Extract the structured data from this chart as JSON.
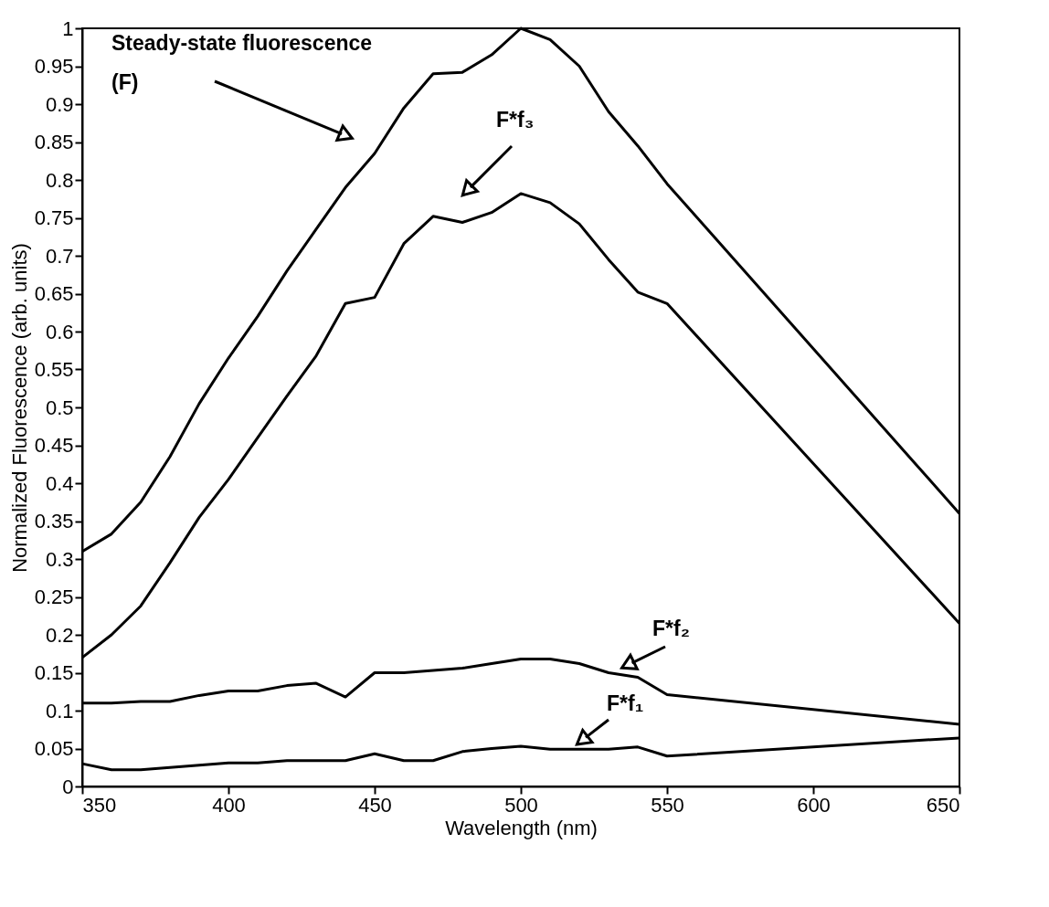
{
  "chart_data": {
    "type": "line",
    "xlabel": "Wavelength (nm)",
    "ylabel": "Normalized Fluorescence (arb. units)",
    "x": [
      350,
      360,
      370,
      380,
      390,
      400,
      410,
      420,
      430,
      440,
      450,
      460,
      470,
      480,
      490,
      500,
      510,
      520,
      530,
      540,
      550,
      650
    ],
    "series": [
      {
        "color": "#000000",
        "values": [
          0.31,
          0.333,
          0.375,
          0.435,
          0.505,
          0.565,
          0.62,
          0.68,
          0.735,
          0.79,
          0.835,
          0.895,
          0.94,
          0.942,
          0.965,
          1.0,
          0.985,
          0.95,
          0.89,
          0.845,
          0.795,
          0.36
        ]
      },
      {
        "color": "#000000",
        "values": [
          0.17,
          0.2,
          0.238,
          0.295,
          0.355,
          0.405,
          0.46,
          0.515,
          0.568,
          0.637,
          0.645,
          0.716,
          0.752,
          0.744,
          0.757,
          0.782,
          0.77,
          0.742,
          0.695,
          0.652,
          0.637,
          0.215
        ]
      },
      {
        "color": "#000000",
        "values": [
          0.11,
          0.11,
          0.112,
          0.112,
          0.12,
          0.126,
          0.126,
          0.133,
          0.136,
          0.118,
          0.15,
          0.15,
          0.153,
          0.156,
          0.162,
          0.168,
          0.168,
          0.162,
          0.15,
          0.144,
          0.121,
          0.082
        ]
      },
      {
        "color": "#000000",
        "values": [
          0.03,
          0.022,
          0.022,
          0.025,
          0.028,
          0.031,
          0.031,
          0.034,
          0.034,
          0.034,
          0.043,
          0.034,
          0.034,
          0.046,
          0.05,
          0.053,
          0.049,
          0.049,
          0.049,
          0.052,
          0.04,
          0.064
        ]
      }
    ],
    "annotations": [
      "Steady-state fluorescence\n(F)",
      "F*f₃",
      "F*f₂",
      "F*f₁"
    ],
    "xlim": [
      350,
      650
    ],
    "xticks": [
      350,
      400,
      450,
      500,
      550,
      600,
      650
    ],
    "ylim": [
      0,
      1
    ],
    "yticks": [
      0,
      0.05,
      0.1,
      0.15,
      0.2,
      0.25,
      0.3,
      0.35,
      0.4,
      0.45,
      0.5,
      0.55,
      0.6,
      0.65,
      0.7,
      0.75,
      0.8,
      0.85,
      0.9,
      0.95,
      1
    ],
    "grid": false,
    "legend": false,
    "marker": "none",
    "line_style": "solid"
  }
}
